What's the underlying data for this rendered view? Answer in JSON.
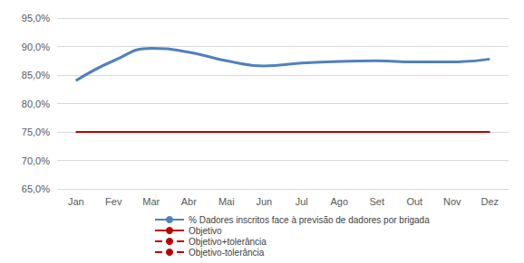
{
  "chart_data": {
    "type": "line",
    "categories": [
      "Jan",
      "Fev",
      "Mar",
      "Abr",
      "Mai",
      "Jun",
      "Jul",
      "Ago",
      "Set",
      "Out",
      "Nov",
      "Dez"
    ],
    "series": [
      {
        "name": "% Dadores inscritos face à previsão de dadores por brigada",
        "color": "#4f81bd",
        "line_style": "solid",
        "values": [
          84.0,
          87.5,
          89.7,
          89.0,
          87.5,
          86.6,
          87.1,
          87.4,
          87.5,
          87.3,
          87.3,
          87.8
        ]
      },
      {
        "name": "Objetivo",
        "color": "#c00000",
        "line_style": "solid",
        "values": [
          75,
          75,
          75,
          75,
          75,
          75,
          75,
          75,
          75,
          75,
          75,
          75
        ]
      },
      {
        "name": "Objetivo+tolerância",
        "color": "#c00000",
        "line_style": "dashed",
        "values": [
          75,
          75,
          75,
          75,
          75,
          75,
          75,
          75,
          75,
          75,
          75,
          75
        ]
      },
      {
        "name": "Objetivo-tolerância",
        "color": "#c00000",
        "line_style": "dashed",
        "values": [
          75,
          75,
          75,
          75,
          75,
          75,
          75,
          75,
          75,
          75,
          75,
          75
        ]
      }
    ],
    "ylim": [
      65,
      95
    ],
    "yticks": [
      {
        "value": 65,
        "label": "65,0%"
      },
      {
        "value": 70,
        "label": "70,0%"
      },
      {
        "value": 75,
        "label": "75,0%"
      },
      {
        "value": 80,
        "label": "80,0%"
      },
      {
        "value": 85,
        "label": "85,0%"
      },
      {
        "value": 90,
        "label": "90,0%"
      },
      {
        "value": 95,
        "label": "95,0%"
      }
    ],
    "grid": true,
    "legend": "bottom"
  }
}
